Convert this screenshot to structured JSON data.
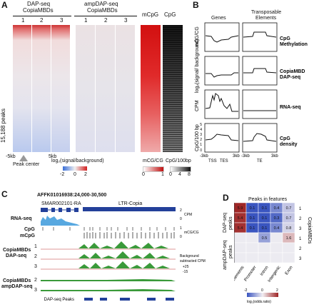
{
  "panelA": {
    "letter": "A",
    "dap_title": "DAP-seq",
    "dap_sub": "CopiaMBDs",
    "amp_title": "ampDAP-seq",
    "amp_sub": "CopiaMBDs",
    "col_nums": [
      "1",
      "2",
      "3"
    ],
    "mcg_label": "mCpG",
    "cpg_label": "CpG",
    "peaks_label": "15,188 peaks",
    "left_tick": "-5kb",
    "right_tick": "5kb",
    "peak_center": "Peak center",
    "legend_log": "log₂(signal/background)",
    "legend_log_ticks": [
      "-2",
      "0",
      "2"
    ],
    "legend_mcg": "mCG/CG",
    "legend_mcg_ticks": [
      "0",
      "1"
    ],
    "legend_cpg": "CpG/100bp",
    "legend_cpg_ticks": [
      "0",
      "4",
      "8"
    ],
    "colors": {
      "blue": "#3a6fd8",
      "red": "#c01010",
      "gray": "#555555"
    }
  },
  "panelB": {
    "letter": "B",
    "col_genes": "Genes",
    "col_te_1": "Transposable",
    "col_te_2": "Elements",
    "rows": [
      {
        "ylabel": "mCG/CG",
        "title1": "CpG",
        "title2": "Methylation",
        "ticks": []
      },
      {
        "ylabel": "log₂(signal/ background)",
        "title1": "CopiaMBD",
        "title2": "DAP-seq",
        "ticks": []
      },
      {
        "ylabel": "CPM",
        "title1": "RNA-seq",
        "title2": "",
        "ticks": []
      },
      {
        "ylabel": "CpG/100 bp",
        "title1": "CpG",
        "title2": "density",
        "ticks": [
          "5",
          "4",
          "3",
          "2",
          "1",
          "0"
        ]
      }
    ],
    "gene_x": [
      "-3kb",
      "TSS",
      "TES",
      "3kb"
    ],
    "te_x": [
      "-3kb",
      "TE",
      "3kb"
    ]
  },
  "panelC": {
    "letter": "C",
    "locus": "AFFK01016938:24,000-30,500",
    "gene_name": "SMAR002101-RA",
    "te_name": "LTR-Copia",
    "track_rna": "RNA-seq",
    "track_cpg": "CpG",
    "track_mcpg": "mCpG",
    "group_dap_1": "CopiaMBDs",
    "group_dap_2": "DAP-seq",
    "group_amp_1": "CopiaMBDs",
    "group_amp_2": "ampDAP-seq",
    "rep_nums": [
      "1",
      "2",
      "3"
    ],
    "amp_nums": [
      "2",
      "3"
    ],
    "scale_rna_top": "2",
    "scale_rna_unit": "CPM",
    "scale_rna_bot": "0",
    "scale_mcg_top": "1",
    "scale_mcg_unit": "mCG/CG",
    "scale_mcg_bot": "0",
    "bg_1": "Background",
    "bg_2": "subtracted CPM",
    "scale_plus": "+25",
    "scale_minus": "-15",
    "peaks_label": "DAP-seq Peaks"
  },
  "panelD": {
    "letter": "D",
    "title": "Peaks in features",
    "dap_group_1": "DAP-seq",
    "dap_group_2": "peaks",
    "amp_group_1": "ampDAP-seq",
    "amp_group_2": "peaks",
    "right_label": "CopiaMBDs",
    "row_nums": [
      "1",
      "2",
      "3",
      "1",
      "2",
      "3"
    ],
    "columns": [
      "Transposable elements",
      "Promoter",
      "Intron",
      "Intergenic",
      "Exon"
    ],
    "cells": [
      [
        "5.9",
        "0.1",
        "0.1",
        "0.4",
        "0.7"
      ],
      [
        "5.4",
        "0.1",
        "0.1",
        "0.3",
        "0.7"
      ],
      [
        "5.4",
        "0.1",
        "0.1",
        "0.4",
        "0.8"
      ],
      [
        "",
        "",
        "0.5",
        "",
        "1.6"
      ],
      [
        "",
        "",
        "",
        "",
        ""
      ],
      [
        "",
        "",
        "",
        "",
        ""
      ]
    ],
    "legend_ticks": [
      "-2",
      "0",
      "2"
    ],
    "legend_label": "log₂(odds.ratio)"
  }
}
